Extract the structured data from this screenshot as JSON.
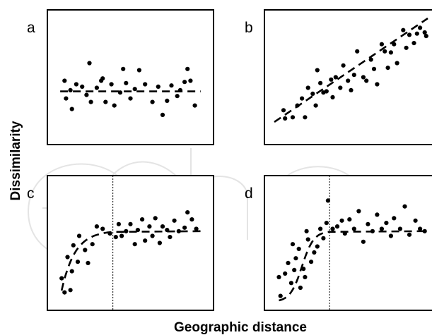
{
  "figure": {
    "xlabel": "Geographic distance",
    "ylabel": "Dissimilarity"
  },
  "chart_data": [
    {
      "type": "scatter",
      "panel": "a",
      "xlim": [
        0,
        1
      ],
      "ylim": [
        0,
        1
      ],
      "grid": false,
      "trend": "flat",
      "trend_y": 0.38,
      "points": [
        [
          0.05,
          0.47
        ],
        [
          0.06,
          0.32
        ],
        [
          0.09,
          0.39
        ],
        [
          0.1,
          0.23
        ],
        [
          0.13,
          0.44
        ],
        [
          0.17,
          0.42
        ],
        [
          0.2,
          0.35
        ],
        [
          0.22,
          0.62
        ],
        [
          0.23,
          0.29
        ],
        [
          0.27,
          0.41
        ],
        [
          0.3,
          0.47
        ],
        [
          0.31,
          0.49
        ],
        [
          0.33,
          0.29
        ],
        [
          0.37,
          0.44
        ],
        [
          0.39,
          0.26
        ],
        [
          0.43,
          0.37
        ],
        [
          0.45,
          0.57
        ],
        [
          0.47,
          0.45
        ],
        [
          0.5,
          0.32
        ],
        [
          0.53,
          0.4
        ],
        [
          0.56,
          0.56
        ],
        [
          0.6,
          0.44
        ],
        [
          0.65,
          0.29
        ],
        [
          0.69,
          0.42
        ],
        [
          0.72,
          0.18
        ],
        [
          0.75,
          0.3
        ],
        [
          0.78,
          0.43
        ],
        [
          0.82,
          0.34
        ],
        [
          0.84,
          0.39
        ],
        [
          0.87,
          0.46
        ],
        [
          0.89,
          0.57
        ],
        [
          0.91,
          0.47
        ],
        [
          0.94,
          0.26
        ]
      ]
    },
    {
      "type": "scatter",
      "panel": "b",
      "xlim": [
        0,
        1
      ],
      "ylim": [
        0,
        1
      ],
      "grid": false,
      "trend": "linear",
      "trend_line": [
        [
          0,
          0.12
        ],
        [
          1,
          1.0
        ]
      ],
      "points": [
        [
          0.06,
          0.22
        ],
        [
          0.07,
          0.15
        ],
        [
          0.12,
          0.16
        ],
        [
          0.15,
          0.26
        ],
        [
          0.18,
          0.32
        ],
        [
          0.2,
          0.16
        ],
        [
          0.22,
          0.41
        ],
        [
          0.25,
          0.36
        ],
        [
          0.27,
          0.26
        ],
        [
          0.28,
          0.56
        ],
        [
          0.3,
          0.45
        ],
        [
          0.32,
          0.37
        ],
        [
          0.34,
          0.38
        ],
        [
          0.37,
          0.48
        ],
        [
          0.38,
          0.33
        ],
        [
          0.4,
          0.5
        ],
        [
          0.43,
          0.41
        ],
        [
          0.45,
          0.6
        ],
        [
          0.48,
          0.47
        ],
        [
          0.5,
          0.39
        ],
        [
          0.52,
          0.52
        ],
        [
          0.54,
          0.72
        ],
        [
          0.58,
          0.5
        ],
        [
          0.6,
          0.47
        ],
        [
          0.63,
          0.65
        ],
        [
          0.65,
          0.57
        ],
        [
          0.67,
          0.44
        ],
        [
          0.7,
          0.78
        ],
        [
          0.72,
          0.72
        ],
        [
          0.74,
          0.58
        ],
        [
          0.76,
          0.71
        ],
        [
          0.78,
          0.78
        ],
        [
          0.8,
          0.62
        ],
        [
          0.84,
          0.9
        ],
        [
          0.86,
          0.75
        ],
        [
          0.88,
          0.86
        ],
        [
          0.91,
          0.79
        ],
        [
          0.93,
          0.87
        ],
        [
          0.95,
          0.92
        ],
        [
          0.98,
          0.88
        ],
        [
          0.99,
          0.85
        ]
      ]
    },
    {
      "type": "scatter",
      "panel": "c",
      "xlim": [
        0,
        1
      ],
      "ylim": [
        0,
        1
      ],
      "grid": false,
      "threshold_x": 0.38,
      "trend": "saturating",
      "trend_plateau_y": 0.6,
      "points": [
        [
          0.03,
          0.2
        ],
        [
          0.05,
          0.08
        ],
        [
          0.07,
          0.38
        ],
        [
          0.09,
          0.1
        ],
        [
          0.1,
          0.26
        ],
        [
          0.11,
          0.48
        ],
        [
          0.14,
          0.34
        ],
        [
          0.15,
          0.56
        ],
        [
          0.19,
          0.44
        ],
        [
          0.21,
          0.33
        ],
        [
          0.24,
          0.49
        ],
        [
          0.27,
          0.64
        ],
        [
          0.31,
          0.62
        ],
        [
          0.36,
          0.58
        ],
        [
          0.4,
          0.55
        ],
        [
          0.42,
          0.66
        ],
        [
          0.44,
          0.56
        ],
        [
          0.47,
          0.6
        ],
        [
          0.5,
          0.66
        ],
        [
          0.53,
          0.49
        ],
        [
          0.55,
          0.61
        ],
        [
          0.58,
          0.7
        ],
        [
          0.6,
          0.52
        ],
        [
          0.63,
          0.64
        ],
        [
          0.65,
          0.56
        ],
        [
          0.67,
          0.71
        ],
        [
          0.7,
          0.5
        ],
        [
          0.72,
          0.64
        ],
        [
          0.75,
          0.61
        ],
        [
          0.77,
          0.55
        ],
        [
          0.8,
          0.69
        ],
        [
          0.83,
          0.6
        ],
        [
          0.87,
          0.63
        ],
        [
          0.89,
          0.76
        ],
        [
          0.92,
          0.7
        ],
        [
          0.95,
          0.62
        ]
      ]
    },
    {
      "type": "scatter",
      "panel": "d",
      "xlim": [
        0,
        1
      ],
      "ylim": [
        0,
        1
      ],
      "grid": false,
      "threshold_x": 0.36,
      "trend": "sigmoidal",
      "trend_plateau_y": 0.6,
      "points": [
        [
          0.03,
          0.21
        ],
        [
          0.04,
          0.05
        ],
        [
          0.07,
          0.24
        ],
        [
          0.09,
          0.33
        ],
        [
          0.11,
          0.16
        ],
        [
          0.12,
          0.49
        ],
        [
          0.13,
          0.27
        ],
        [
          0.14,
          0.37
        ],
        [
          0.16,
          0.45
        ],
        [
          0.17,
          0.12
        ],
        [
          0.19,
          0.28
        ],
        [
          0.2,
          0.21
        ],
        [
          0.21,
          0.6
        ],
        [
          0.22,
          0.53
        ],
        [
          0.24,
          0.34
        ],
        [
          0.26,
          0.42
        ],
        [
          0.28,
          0.47
        ],
        [
          0.3,
          0.62
        ],
        [
          0.32,
          0.54
        ],
        [
          0.34,
          0.67
        ],
        [
          0.35,
          0.86
        ],
        [
          0.38,
          0.62
        ],
        [
          0.41,
          0.64
        ],
        [
          0.44,
          0.69
        ],
        [
          0.46,
          0.58
        ],
        [
          0.49,
          0.7
        ],
        [
          0.52,
          0.62
        ],
        [
          0.55,
          0.77
        ],
        [
          0.58,
          0.51
        ],
        [
          0.61,
          0.66
        ],
        [
          0.64,
          0.6
        ],
        [
          0.67,
          0.74
        ],
        [
          0.7,
          0.62
        ],
        [
          0.73,
          0.67
        ],
        [
          0.76,
          0.56
        ],
        [
          0.78,
          0.71
        ],
        [
          0.82,
          0.62
        ],
        [
          0.85,
          0.81
        ],
        [
          0.88,
          0.57
        ],
        [
          0.92,
          0.69
        ],
        [
          0.95,
          0.62
        ],
        [
          0.98,
          0.6
        ]
      ]
    }
  ]
}
